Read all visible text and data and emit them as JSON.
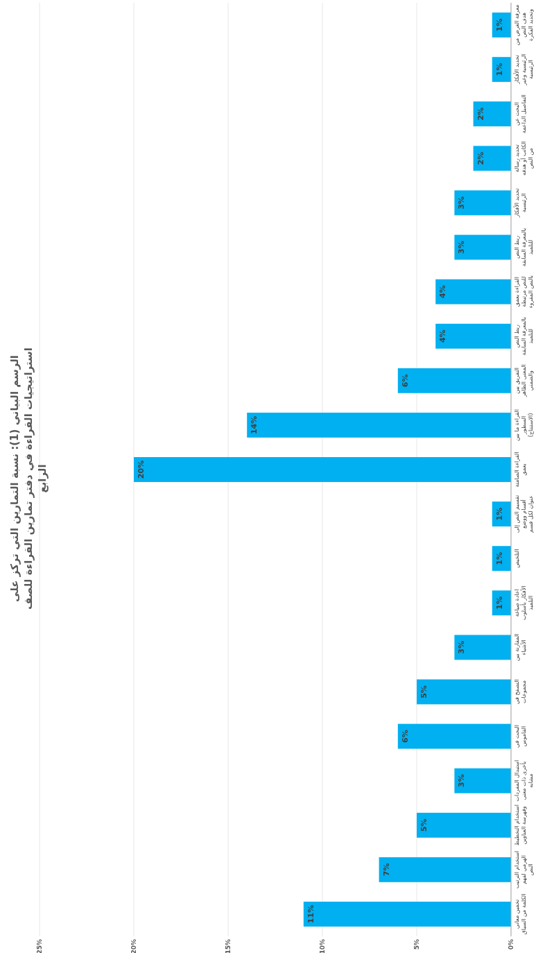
{
  "chart_data": {
    "type": "bar",
    "orientation": "horizontal",
    "title": "الرسم البياني (1): نسبة التمارين التي تركز على استراتيجيات القراءة في دفتر تمارين القراءة للصف الرابع",
    "categories": [
      "معرفة الغرض من هدف النص وتحديد الفكرة",
      "تحديد الأفكار الرئيسية وغير الرئيسية",
      "البحث عن التفاصيل الداعمة",
      "تحديد رسالة الكاتب أو هدفه من النص",
      "تحديد الأفكار الرئيسية",
      "ربط النص بالمعرفة السابقة للتلميذ",
      "القراءة بعمق للنص مرتبطة بالنص المقروء",
      "ربط النص بالمعرفة السابقة للتلميذ",
      "التفريق بين المعنى الظاهر والضمني",
      "القراءة ما بين السطور (الاستنتاج)",
      "القراءة الصامتة بعمق",
      "تقسيم النص إلى أقسام ووضع عنوان لكل قسم",
      "التلخيص",
      "اعادة صياغة الأفكار بأسلوب التلميذ",
      "المقارنة بين الأشياء",
      "التصفح في مجموعات",
      "البحث في القاموس",
      "استبدال المفردات بأخرى ذات معنى مشابه",
      "استخدام التخطيط وفهرسة العناوين",
      "استخدام الترتيب الهرمي لفهم النص",
      "تخمين معاني الكلمة من السياق"
    ],
    "values": [
      1,
      1,
      2,
      2,
      3,
      3,
      4,
      4,
      6,
      14,
      20,
      1,
      1,
      1,
      3,
      5,
      6,
      3,
      5,
      7,
      11
    ],
    "value_labels": [
      "1%",
      "1%",
      "2%",
      "2%",
      "3%",
      "3%",
      "4%",
      "4%",
      "6%",
      "14%",
      "20%",
      "1%",
      "1%",
      "1%",
      "3%",
      "5%",
      "6%",
      "3%",
      "5%",
      "7%",
      "11%"
    ],
    "color": "#00b0f0",
    "xlim": [
      25,
      0
    ],
    "xticks": [
      {
        "value": 0,
        "label": "0%"
      },
      {
        "value": 5,
        "label": "5%"
      },
      {
        "value": 10,
        "label": "10%"
      },
      {
        "value": 15,
        "label": "15%"
      },
      {
        "value": 20,
        "label": "20%"
      },
      {
        "value": 25,
        "label": "25%"
      }
    ],
    "grid": "x"
  }
}
